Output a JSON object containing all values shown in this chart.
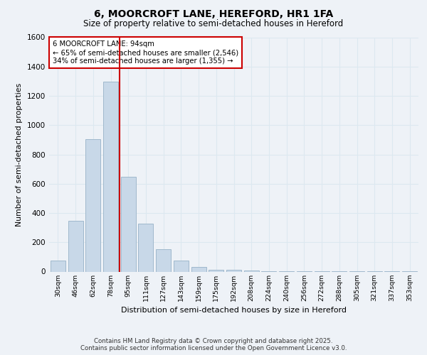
{
  "title_line1": "6, MOORCROFT LANE, HEREFORD, HR1 1FA",
  "title_line2": "Size of property relative to semi-detached houses in Hereford",
  "xlabel": "Distribution of semi-detached houses by size in Hereford",
  "ylabel": "Number of semi-detached properties",
  "categories": [
    "30sqm",
    "46sqm",
    "62sqm",
    "78sqm",
    "95sqm",
    "111sqm",
    "127sqm",
    "143sqm",
    "159sqm",
    "175sqm",
    "192sqm",
    "208sqm",
    "224sqm",
    "240sqm",
    "256sqm",
    "272sqm",
    "288sqm",
    "305sqm",
    "321sqm",
    "337sqm",
    "353sqm"
  ],
  "values": [
    75,
    345,
    905,
    1295,
    645,
    325,
    155,
    75,
    30,
    10,
    10,
    5,
    3,
    2,
    2,
    2,
    1,
    1,
    1,
    1,
    1
  ],
  "bar_color": "#c8d8e8",
  "bar_edge_color": "#a0b8cc",
  "grid_color": "#dce8f0",
  "background_color": "#eef2f7",
  "vline_x_index": 4,
  "vline_color": "#cc0000",
  "annotation_title": "6 MOORCROFT LANE: 94sqm",
  "annotation_line1": "← 65% of semi-detached houses are smaller (2,546)",
  "annotation_line2": "34% of semi-detached houses are larger (1,355) →",
  "annotation_box_color": "#ffffff",
  "annotation_box_edge": "#cc0000",
  "ylim": [
    0,
    1600
  ],
  "yticks": [
    0,
    200,
    400,
    600,
    800,
    1000,
    1200,
    1400,
    1600
  ],
  "footer_line1": "Contains HM Land Registry data © Crown copyright and database right 2025.",
  "footer_line2": "Contains public sector information licensed under the Open Government Licence v3.0."
}
